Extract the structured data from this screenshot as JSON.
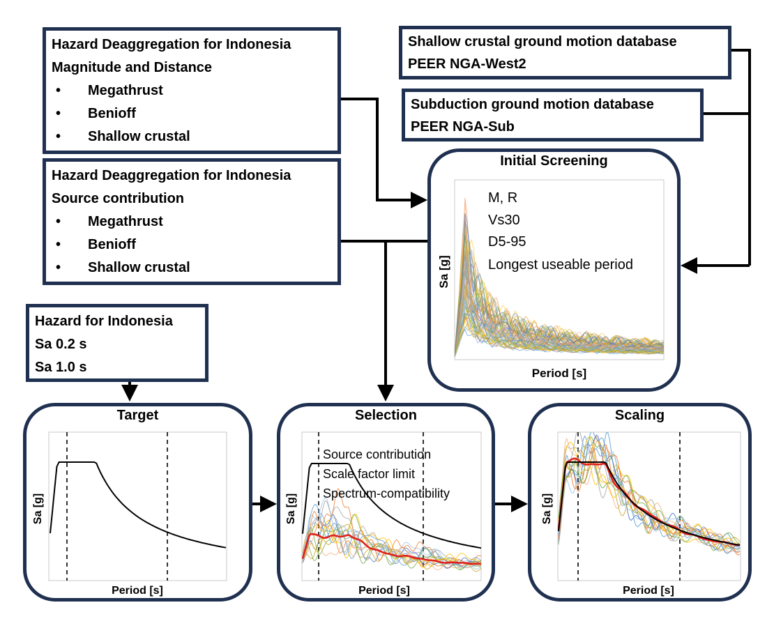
{
  "boxes": {
    "deagg_mag": {
      "line1": "Hazard Deaggregation for Indonesia",
      "line2": "Magnitude and Distance",
      "items": [
        "Megathrust",
        "Benioff",
        "Shallow crustal"
      ]
    },
    "deagg_src": {
      "line1": "Hazard Deaggregation for Indonesia",
      "line2": "Source contribution",
      "items": [
        "Megathrust",
        "Benioff",
        "Shallow crustal"
      ]
    },
    "hazard": {
      "line1": "Hazard for Indonesia",
      "line2": "Sa 0.2 s",
      "line3": "Sa 1.0 s"
    },
    "shallow_db": {
      "line1": "Shallow crustal ground motion database",
      "line2": "PEER NGA-West2"
    },
    "subduction_db": {
      "line1": "Subduction ground motion database",
      "line2": "PEER NGA-Sub"
    }
  },
  "panels": {
    "initial": {
      "title": "Initial Screening",
      "ylabel": "Sa [g]",
      "xlabel": "Period [s]",
      "criteria": [
        "M, R",
        "Vs30",
        "D5-95",
        "Longest useable period"
      ]
    },
    "target": {
      "title": "Target",
      "ylabel": "Sa [g]",
      "xlabel": "Period [s]"
    },
    "selection": {
      "title": "Selection",
      "ylabel": "Sa [g]",
      "xlabel": "Period [s]",
      "criteria": [
        "Source contribution",
        "Scale factor limit",
        "Spectrum-compatibility"
      ]
    },
    "scaling": {
      "title": "Scaling",
      "ylabel": "Sa [g]",
      "xlabel": "Period [s]"
    }
  },
  "colors": {
    "border": "#1f3050",
    "target": "#000000",
    "mean": "#e0201b",
    "records": [
      "#5b9bd5",
      "#ed7d31",
      "#a5a5a5",
      "#ffc000",
      "#70ad47",
      "#4472c4",
      "#c9a227",
      "#9dc3e6",
      "#f4b183"
    ]
  }
}
